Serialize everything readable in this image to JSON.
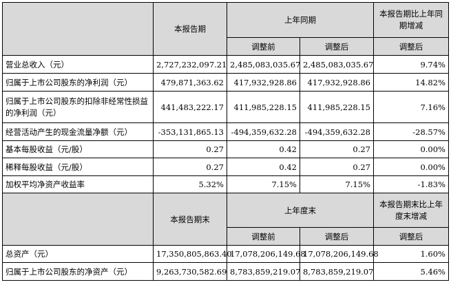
{
  "section1": {
    "header": {
      "current": "本报告期",
      "prior": "上年同期",
      "change": "本报告期比上年同期增减",
      "before_adj": "调整前",
      "after_adj": "调整后",
      "change_after": "调整后"
    },
    "rows": [
      {
        "label": "营业总收入（元）",
        "current": "2,727,232,097.21",
        "before": "2,485,083,035.67",
        "after": "2,485,083,035.67",
        "change": "9.74%"
      },
      {
        "label": "归属于上市公司股东的净利润（元）",
        "current": "479,871,363.62",
        "before": "417,932,928.86",
        "after": "417,932,928.86",
        "change": "14.82%"
      },
      {
        "label": "归属于上市公司股东的扣除非经常性损益的净利润（元）",
        "current": "441,483,222.17",
        "before": "411,985,228.15",
        "after": "411,985,228.15",
        "change": "7.16%"
      },
      {
        "label": "经营活动产生的现金流量净额（元）",
        "current": "-353,131,865.13",
        "before": "-494,359,632.28",
        "after": "-494,359,632.28",
        "change": "-28.57%"
      },
      {
        "label": "基本每股收益（元/股）",
        "current": "0.27",
        "before": "0.42",
        "after": "0.27",
        "change": "0.00%"
      },
      {
        "label": "稀释每股收益（元/股）",
        "current": "0.27",
        "before": "0.42",
        "after": "0.27",
        "change": "0.00%"
      },
      {
        "label": "加权平均净资产收益率",
        "current": "5.32%",
        "before": "7.15%",
        "after": "7.15%",
        "change": "-1.83%"
      }
    ]
  },
  "section2": {
    "header": {
      "current": "本报告期末",
      "prior": "上年度末",
      "change": "本报告期末比上年度末增减",
      "before_adj": "调整前",
      "after_adj": "调整后",
      "change_after": "调整后"
    },
    "rows": [
      {
        "label": "总资产（元）",
        "current": "17,350,805,863.40",
        "before": "17,078,206,149.68",
        "after": "17,078,206,149.68",
        "change": "1.60%"
      },
      {
        "label": "归属于上市公司股东的净资产（元）",
        "current": "9,263,730,582.69",
        "before": "8,783,859,219.07",
        "after": "8,783,859,219.07",
        "change": "5.46%"
      }
    ]
  }
}
